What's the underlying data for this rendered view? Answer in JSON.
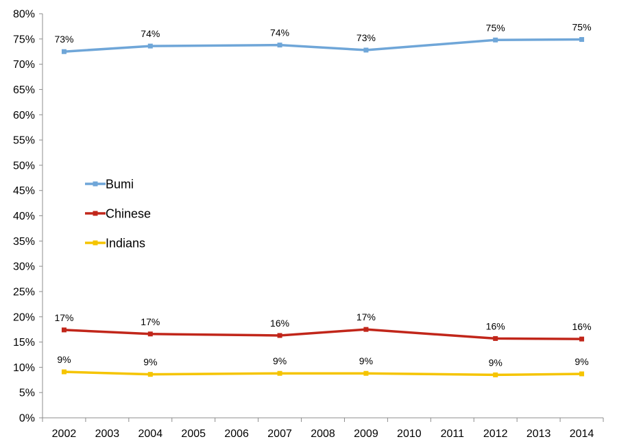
{
  "chart_data": {
    "type": "line",
    "categories": [
      "2002",
      "2003",
      "2004",
      "2005",
      "2006",
      "2007",
      "2008",
      "2009",
      "2010",
      "2011",
      "2012",
      "2013",
      "2014"
    ],
    "ylim": [
      0,
      0.8
    ],
    "y_ticks": [
      0,
      0.05,
      0.1,
      0.15,
      0.2,
      0.25,
      0.3,
      0.35,
      0.4,
      0.45,
      0.5,
      0.55,
      0.6,
      0.65,
      0.7,
      0.75,
      0.8
    ],
    "y_tick_labels": [
      "0%",
      "5%",
      "10%",
      "15%",
      "20%",
      "25%",
      "30%",
      "35%",
      "40%",
      "45%",
      "50%",
      "55%",
      "60%",
      "65%",
      "70%",
      "75%",
      "80%"
    ],
    "grid": false,
    "legend_position": "left-middle",
    "series": [
      {
        "name": "Bumi",
        "color": "#6fa6d8",
        "points": [
          {
            "x": "2002",
            "y": 0.725,
            "label": "73%"
          },
          {
            "x": "2004",
            "y": 0.736,
            "label": "74%"
          },
          {
            "x": "2007",
            "y": 0.738,
            "label": "74%"
          },
          {
            "x": "2009",
            "y": 0.728,
            "label": "73%"
          },
          {
            "x": "2012",
            "y": 0.748,
            "label": "75%"
          },
          {
            "x": "2014",
            "y": 0.749,
            "label": "75%"
          }
        ]
      },
      {
        "name": "Chinese",
        "color": "#c1261a",
        "points": [
          {
            "x": "2002",
            "y": 0.174,
            "label": "17%"
          },
          {
            "x": "2004",
            "y": 0.166,
            "label": "17%"
          },
          {
            "x": "2007",
            "y": 0.163,
            "label": "16%"
          },
          {
            "x": "2009",
            "y": 0.175,
            "label": "17%"
          },
          {
            "x": "2012",
            "y": 0.157,
            "label": "16%"
          },
          {
            "x": "2014",
            "y": 0.156,
            "label": "16%"
          }
        ]
      },
      {
        "name": "Indians",
        "color": "#f5c400",
        "points": [
          {
            "x": "2002",
            "y": 0.091,
            "label": "9%"
          },
          {
            "x": "2004",
            "y": 0.086,
            "label": "9%"
          },
          {
            "x": "2007",
            "y": 0.088,
            "label": "9%"
          },
          {
            "x": "2009",
            "y": 0.088,
            "label": "9%"
          },
          {
            "x": "2012",
            "y": 0.085,
            "label": "9%"
          },
          {
            "x": "2014",
            "y": 0.087,
            "label": "9%"
          }
        ]
      }
    ]
  }
}
